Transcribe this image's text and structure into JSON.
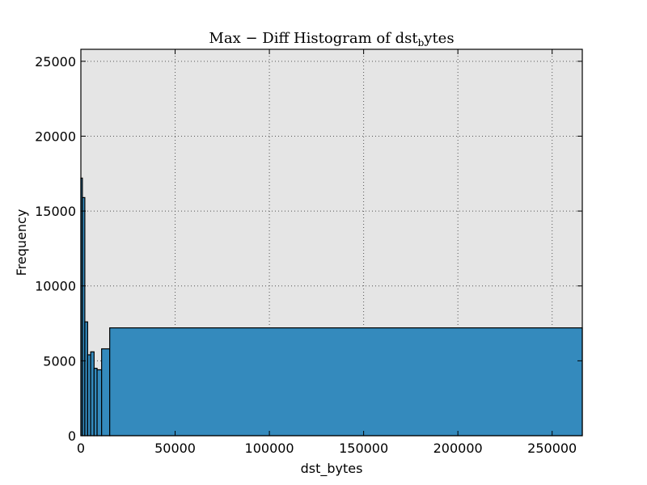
{
  "chart_data": {
    "type": "bar",
    "title_main": "Max − Diff Histogram of dst",
    "title_sub": "b",
    "title_tail": "ytes",
    "xlabel": "dst_bytes",
    "ylabel": "Frequency",
    "xlim": [
      0,
      266000
    ],
    "ylim": [
      0,
      25800
    ],
    "grid": true,
    "xticks": [
      0,
      50000,
      100000,
      150000,
      200000,
      250000
    ],
    "xtick_labels": [
      "0",
      "50000",
      "100000",
      "150000",
      "200000",
      "250000"
    ],
    "yticks": [
      0,
      5000,
      10000,
      15000,
      20000,
      25000
    ],
    "ytick_labels": [
      "0",
      "5000",
      "10000",
      "15000",
      "20000",
      "25000"
    ],
    "bins": [
      {
        "x0": 0,
        "x1": 800,
        "value": 17200
      },
      {
        "x0": 800,
        "x1": 2100,
        "value": 15900
      },
      {
        "x0": 2100,
        "x1": 3600,
        "value": 7600
      },
      {
        "x0": 3600,
        "x1": 5200,
        "value": 5400
      },
      {
        "x0": 5200,
        "x1": 7000,
        "value": 5600
      },
      {
        "x0": 7000,
        "x1": 8600,
        "value": 4500
      },
      {
        "x0": 8600,
        "x1": 11000,
        "value": 4400
      },
      {
        "x0": 11000,
        "x1": 15300,
        "value": 5800
      },
      {
        "x0": 15300,
        "x1": 266000,
        "value": 7200
      }
    ],
    "colors": {
      "bar_fill": "#348abd",
      "bar_edge": "#000000",
      "plot_bg": "#e5e5e5",
      "grid": "#555555"
    }
  }
}
